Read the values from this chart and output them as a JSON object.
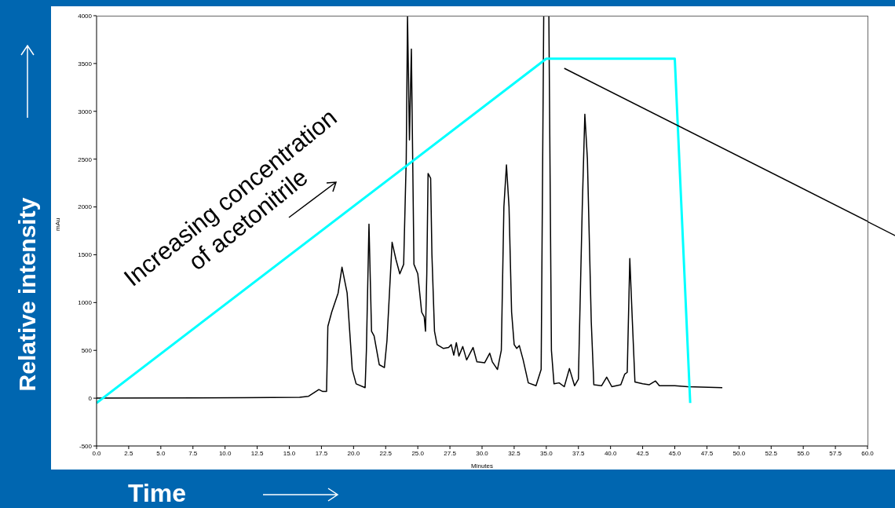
{
  "chart_data": {
    "type": "line",
    "xlabel": "Minutes",
    "ylabel": "mAu",
    "xlim": [
      0,
      60
    ],
    "xticks": [
      {
        "value": 0,
        "label": "0.0"
      },
      {
        "value": 2.5,
        "label": "2.5"
      },
      {
        "value": 5,
        "label": "5.0"
      },
      {
        "value": 7.5,
        "label": "7.5"
      },
      {
        "value": 10,
        "label": "10.0"
      },
      {
        "value": 12.5,
        "label": "12.5"
      },
      {
        "value": 15,
        "label": "15.0"
      },
      {
        "value": 17.5,
        "label": "17.5"
      },
      {
        "value": 20,
        "label": "20.0"
      },
      {
        "value": 22.5,
        "label": "22.5"
      },
      {
        "value": 25,
        "label": "25.0"
      },
      {
        "value": 27.5,
        "label": "27.5"
      },
      {
        "value": 30,
        "label": "30.0"
      },
      {
        "value": 32.5,
        "label": "32.5"
      },
      {
        "value": 35,
        "label": "35.0"
      },
      {
        "value": 37.5,
        "label": "37.5"
      },
      {
        "value": 40,
        "label": "40.0"
      },
      {
        "value": 42.5,
        "label": "42.5"
      },
      {
        "value": 45,
        "label": "45.0"
      },
      {
        "value": 47.5,
        "label": "47.5"
      },
      {
        "value": 50,
        "label": "50.0"
      },
      {
        "value": 52.5,
        "label": "52.5"
      },
      {
        "value": 55,
        "label": "55.0"
      },
      {
        "value": 57.5,
        "label": "57.5"
      },
      {
        "value": 60,
        "label": "60.0"
      }
    ],
    "ylim": [
      -500,
      4000
    ],
    "yticks": [
      -500,
      0,
      500,
      1000,
      1500,
      2000,
      2500,
      3000,
      3500,
      4000
    ],
    "marker": "none",
    "line_style": "solid",
    "annotations": [
      "Increasing concentration of acetonitrile",
      "Relative intensity",
      "Time"
    ],
    "series": [
      {
        "color": "#000000",
        "x": [
          0,
          11.5,
          15.8,
          16.5,
          17.3,
          17.6,
          17.9,
          18.0,
          18.3,
          18.8,
          19.1,
          19.5,
          19.9,
          20.2,
          20.9,
          21.0,
          21.2,
          21.4,
          21.6,
          22.0,
          22.4,
          22.6,
          23.0,
          23.3,
          23.6,
          23.9,
          24.1,
          24.2,
          24.35,
          24.5,
          24.7,
          25.0,
          25.3,
          25.5,
          25.6,
          25.7,
          25.8,
          26.0,
          26.1,
          26.3,
          26.5,
          27.0,
          27.4,
          27.6,
          27.8,
          28.0,
          28.2,
          28.5,
          28.8,
          29.3,
          29.6,
          30.2,
          30.6,
          30.8,
          31.2,
          31.5,
          31.7,
          31.9,
          32.1,
          32.3,
          32.5,
          32.7,
          32.9,
          33.2,
          33.6,
          34.2,
          34.6,
          34.8,
          35.2,
          35.4,
          35.6,
          36.0,
          36.4,
          36.8,
          37.2,
          37.5,
          37.8,
          38.0,
          38.2,
          38.5,
          38.7,
          39.3,
          39.7,
          40.1,
          40.8,
          41.1,
          41.3,
          41.5,
          41.7,
          41.9,
          42.5,
          43.0,
          43.5,
          43.8,
          45.0,
          46.0,
          48.7
        ],
        "values": [
          0,
          5,
          10,
          20,
          90,
          70,
          70,
          750,
          900,
          1100,
          1370,
          1100,
          300,
          150,
          110,
          500,
          1820,
          700,
          650,
          350,
          320,
          600,
          1630,
          1450,
          1300,
          1400,
          2500,
          4000,
          2700,
          3650,
          1400,
          1300,
          900,
          850,
          700,
          1300,
          2350,
          2300,
          1500,
          700,
          560,
          520,
          530,
          560,
          450,
          580,
          440,
          540,
          400,
          530,
          380,
          370,
          470,
          380,
          300,
          500,
          2000,
          2440,
          2000,
          900,
          560,
          520,
          550,
          400,
          160,
          130,
          300,
          4000,
          4000,
          500,
          150,
          160,
          120,
          310,
          130,
          200,
          2000,
          2970,
          2500,
          800,
          140,
          130,
          220,
          120,
          140,
          250,
          270,
          1460,
          800,
          170,
          150,
          140,
          180,
          130,
          130,
          120,
          110
        ]
      },
      {
        "color": "#00ffff",
        "x": [
          0,
          35,
          45,
          46.2
        ],
        "values": [
          -50,
          3550,
          3550,
          -50
        ]
      },
      {
        "color": "#000000",
        "x": [
          36.4,
          60
        ],
        "values": [
          3450,
          1850
        ]
      }
    ]
  }
}
